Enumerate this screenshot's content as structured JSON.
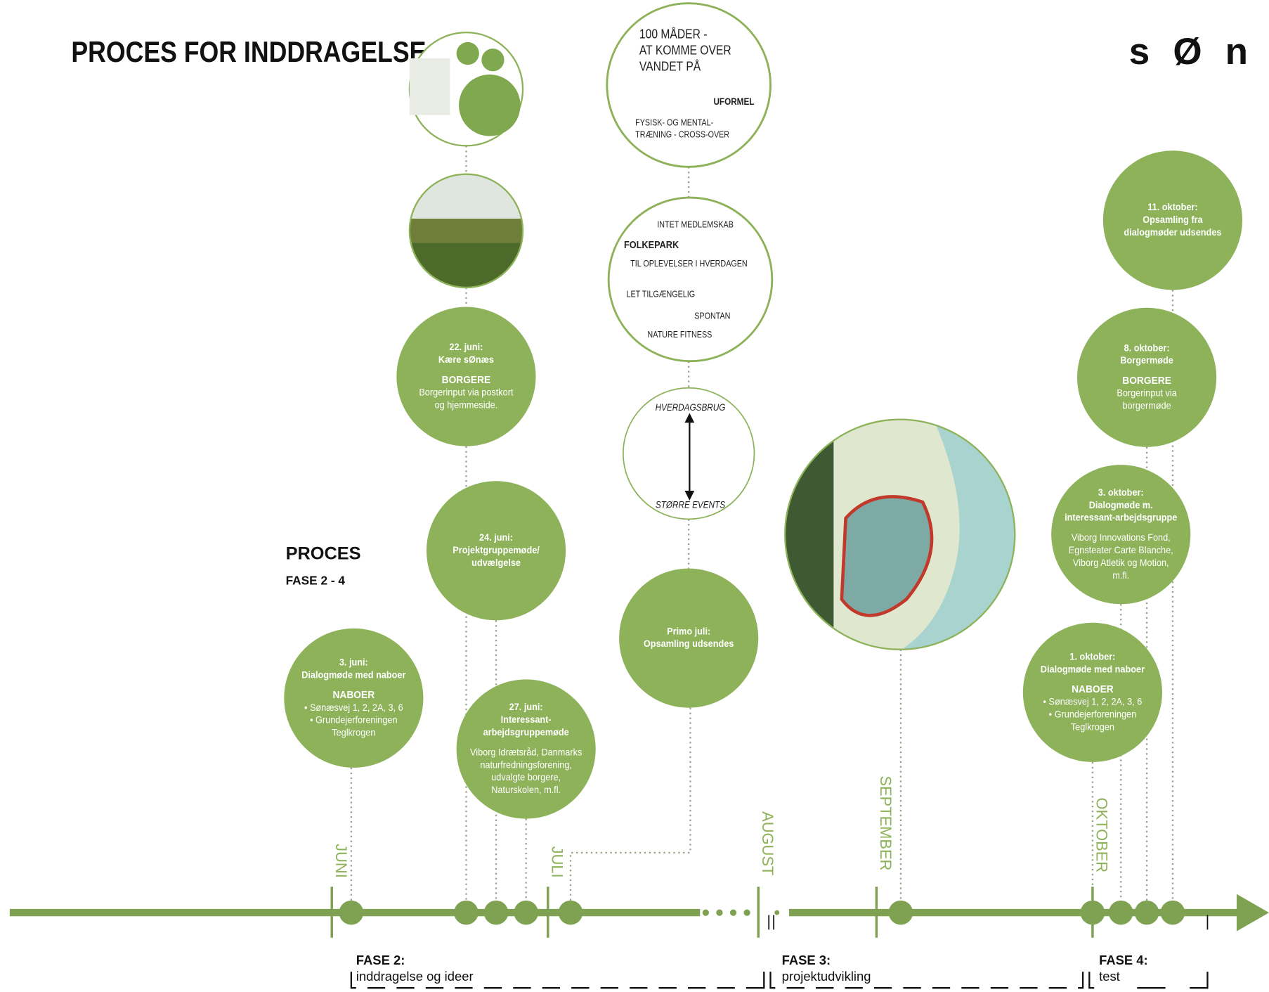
{
  "header": {
    "title": "PROCES FOR INDDRAGELSE",
    "logo": "s Ø n a"
  },
  "process": {
    "title": "PROCES",
    "subtitle": "FASE 2 - 4"
  },
  "concepts": [
    {
      "lines": [
        "100 MÅDER -",
        "AT KOMME OVER",
        "VANDET PÅ",
        "UFORMEL",
        "FYSISK- OG MENTAL-",
        "TRÆNING - CROSS-OVER"
      ]
    },
    {
      "lines": [
        "INTET MEDLEMSKAB",
        "FOLKEPARK",
        "TIL OPLEVELSER I HVERDAGEN",
        "LET TILGÆNGELIG",
        "SPONTAN",
        "NATURE FITNESS"
      ]
    },
    {
      "lines": [
        "HVERDAGSBRUG",
        "STØRRE EVENTS"
      ]
    }
  ],
  "events": [
    {
      "date": "22. juni:",
      "title": [
        "Kære sØnæs"
      ],
      "group": "BORGERE",
      "details": [
        "Borgerinput via postkort",
        "og hjemmeside."
      ]
    },
    {
      "date": "24. juni:",
      "title": [
        "Projektgruppemøde/",
        "udvælgelse"
      ],
      "details": []
    },
    {
      "date": "27. juni:",
      "title": [
        "Interessant-",
        "arbejdsgruppemøde"
      ],
      "details": [
        "Viborg Idrætsråd, Danmarks",
        "naturfredningsforening,",
        "udvalgte borgere,",
        "Naturskolen, m.fl."
      ]
    },
    {
      "date": "3. juni:",
      "title": [
        "Dialogmøde med naboer"
      ],
      "group": "NABOER",
      "details": [
        "• Sønæsvej 1, 2, 2A, 3, 6",
        "• Grundejerforeningen",
        "Teglkrogen"
      ]
    },
    {
      "date": "Primo juli:",
      "title": [
        "Opsamling udsendes"
      ],
      "details": []
    },
    {
      "date": "11. oktober:",
      "title": [
        "Opsamling fra",
        "dialogmøder udsendes"
      ],
      "details": []
    },
    {
      "date": "8. oktober:",
      "title": [
        "Borgermøde"
      ],
      "group": "BORGERE",
      "details": [
        "Borgerinput via",
        "borgermøde"
      ]
    },
    {
      "date": "3. oktober:",
      "title": [
        "Dialogmøde m.",
        "interessant-arbejdsgruppe"
      ],
      "details": [
        "Viborg Innovations Fond,",
        "Egnsteater Carte Blanche,",
        "Viborg Atletik og Motion,",
        "m.fl."
      ]
    },
    {
      "date": "1. oktober:",
      "title": [
        "Dialogmøde med naboer"
      ],
      "group": "NABOER",
      "details": [
        "• Sønæsvej 1, 2, 2A, 3, 6",
        "• Grundejerforeningen",
        "Teglkrogen"
      ]
    }
  ],
  "months": [
    "JUNI",
    "JULI",
    "AUGUST",
    "SEPTEMBER",
    "OKTOBER"
  ],
  "phases": [
    {
      "name": "FASE 2:",
      "desc": "inddragelse og ideer"
    },
    {
      "name": "FASE 3:",
      "desc": "projektudvikling"
    },
    {
      "name": "FASE 4:",
      "desc": "test"
    }
  ]
}
